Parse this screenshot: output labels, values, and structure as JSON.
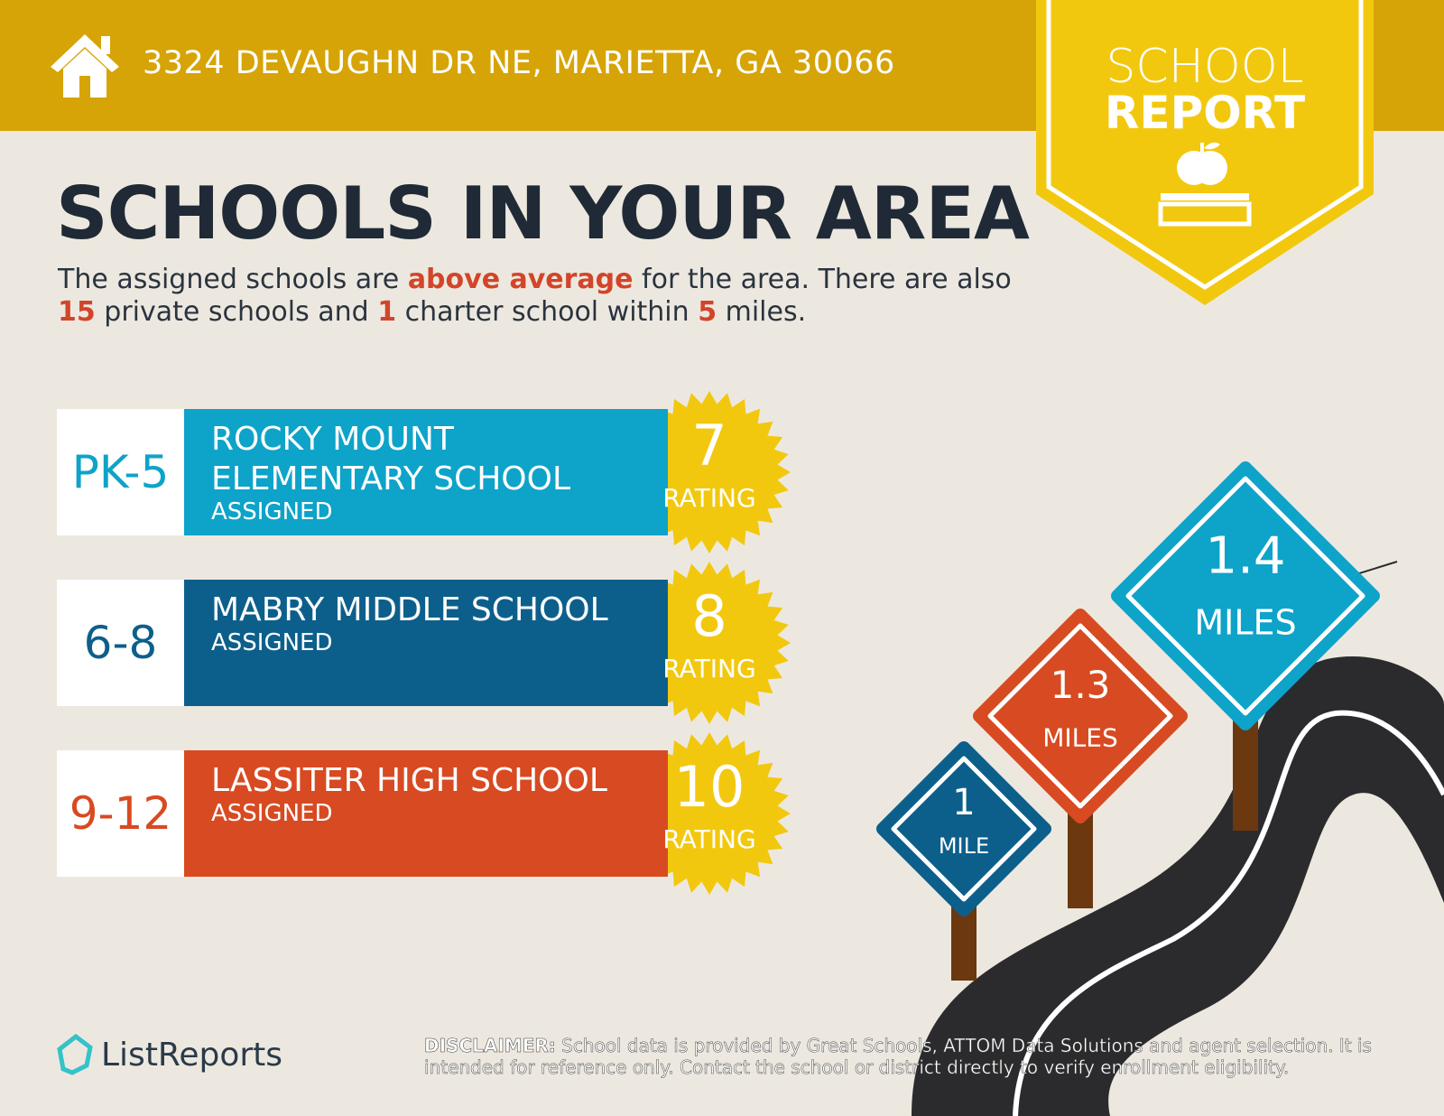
{
  "header": {
    "address": "3324 DEVAUGHN DR NE, MARIETTA, GA 30066"
  },
  "badge": {
    "line1": "SCHOOL",
    "line2": "REPORT"
  },
  "heading": "SCHOOLS IN YOUR AREA",
  "summary": [
    {
      "text": "The assigned schools are ",
      "highlight": false
    },
    {
      "text": "above average",
      "highlight": true
    },
    {
      "text": " for the area. There are also ",
      "highlight": false
    },
    {
      "text": "15",
      "highlight": true
    },
    {
      "text": " private schools and ",
      "highlight": false
    },
    {
      "text": "1",
      "highlight": true
    },
    {
      "text": " charter school within ",
      "highlight": false
    },
    {
      "text": "5",
      "highlight": true
    },
    {
      "text": " miles.",
      "highlight": false
    }
  ],
  "schools": [
    {
      "grades": "PK-5",
      "name": "ROCKY MOUNT ELEMENTARY SCHOOL",
      "status": "ASSIGNED",
      "rating": 7,
      "rating_label": "RATING",
      "color": "#0ea3c9"
    },
    {
      "grades": "6-8",
      "name": "MABRY MIDDLE SCHOOL",
      "status": "ASSIGNED",
      "rating": 8,
      "rating_label": "RATING",
      "color": "#0d5f8b"
    },
    {
      "grades": "9-12",
      "name": "LASSITER HIGH SCHOOL",
      "status": "ASSIGNED",
      "rating": 10,
      "rating_label": "RATING",
      "color": "#d84a22"
    }
  ],
  "signs": [
    {
      "distance": 1,
      "unit": "MILE",
      "color": "#0d5f8b"
    },
    {
      "distance": 1.3,
      "unit": "MILES",
      "color": "#d84a22"
    },
    {
      "distance": 1.4,
      "unit": "MILES",
      "color": "#0ea3c9"
    }
  ],
  "footer": {
    "brand": "ListReports",
    "disclaimer_label": "DISCLAIMER:",
    "disclaimer_text": " School data is provided by Great Schools, ATTOM Data Solutions and agent selection. It is intended for reference only. Contact the school or district directly to verify enrollment eligibility."
  }
}
